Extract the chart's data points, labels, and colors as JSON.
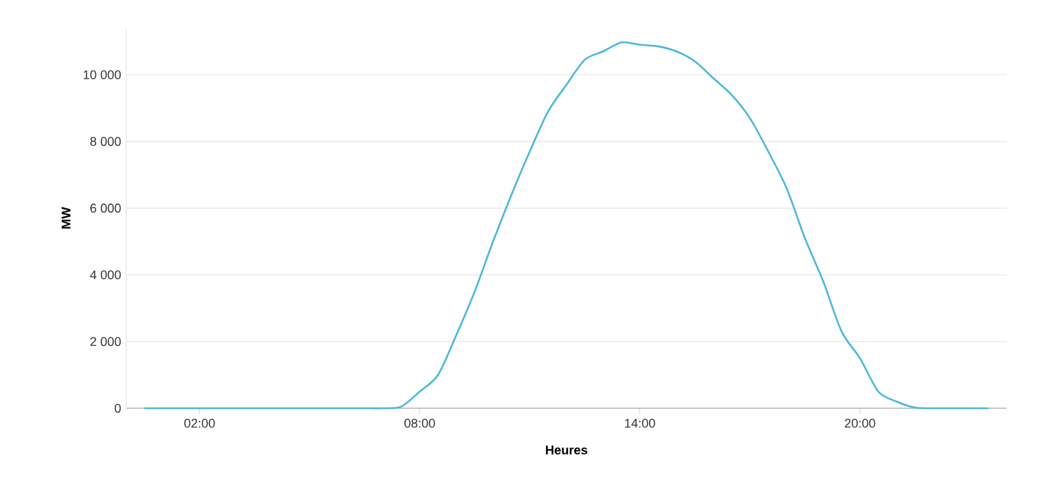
{
  "chart_data": {
    "type": "line",
    "xlabel": "Heures",
    "ylabel": "MW",
    "x": [
      0.5,
      1,
      1.5,
      2,
      2.5,
      3,
      3.5,
      4,
      4.5,
      5,
      5.5,
      6,
      6.5,
      7,
      7.5,
      8,
      8.5,
      9,
      9.5,
      10,
      10.5,
      11,
      11.5,
      12,
      12.5,
      13,
      13.5,
      14,
      14.5,
      15,
      15.5,
      16,
      16.5,
      17,
      17.5,
      18,
      18.5,
      19,
      19.5,
      20,
      20.5,
      21,
      21.5,
      22,
      22.5,
      23,
      23.5
    ],
    "series": [
      {
        "color": "#4ab8d8",
        "values": [
          0,
          0,
          0,
          0,
          0,
          0,
          0,
          0,
          0,
          0,
          0,
          0,
          0,
          0,
          50,
          500,
          1000,
          2200,
          3500,
          5000,
          6400,
          7700,
          8900,
          9700,
          10450,
          10700,
          10970,
          10900,
          10850,
          10700,
          10400,
          9900,
          9400,
          8700,
          7700,
          6600,
          5100,
          3800,
          2300,
          1500,
          500,
          200,
          20,
          0,
          0,
          0,
          0
        ]
      }
    ],
    "xlim": [
      0,
      24
    ],
    "ylim": [
      0,
      11400
    ],
    "xticks": [
      {
        "value": 2,
        "label": "02:00"
      },
      {
        "value": 8,
        "label": "08:00"
      },
      {
        "value": 14,
        "label": "14:00"
      },
      {
        "value": 20,
        "label": "20:00"
      }
    ],
    "yticks": [
      0,
      {
        "value": 2000,
        "label": "2 000"
      },
      {
        "value": 4000,
        "label": "4 000"
      },
      {
        "value": 6000,
        "label": "6 000"
      },
      {
        "value": 8000,
        "label": "8 000"
      },
      {
        "value": 10000,
        "label": "10 000"
      }
    ],
    "grid": "y",
    "marker": "none",
    "line_style": "solid"
  }
}
